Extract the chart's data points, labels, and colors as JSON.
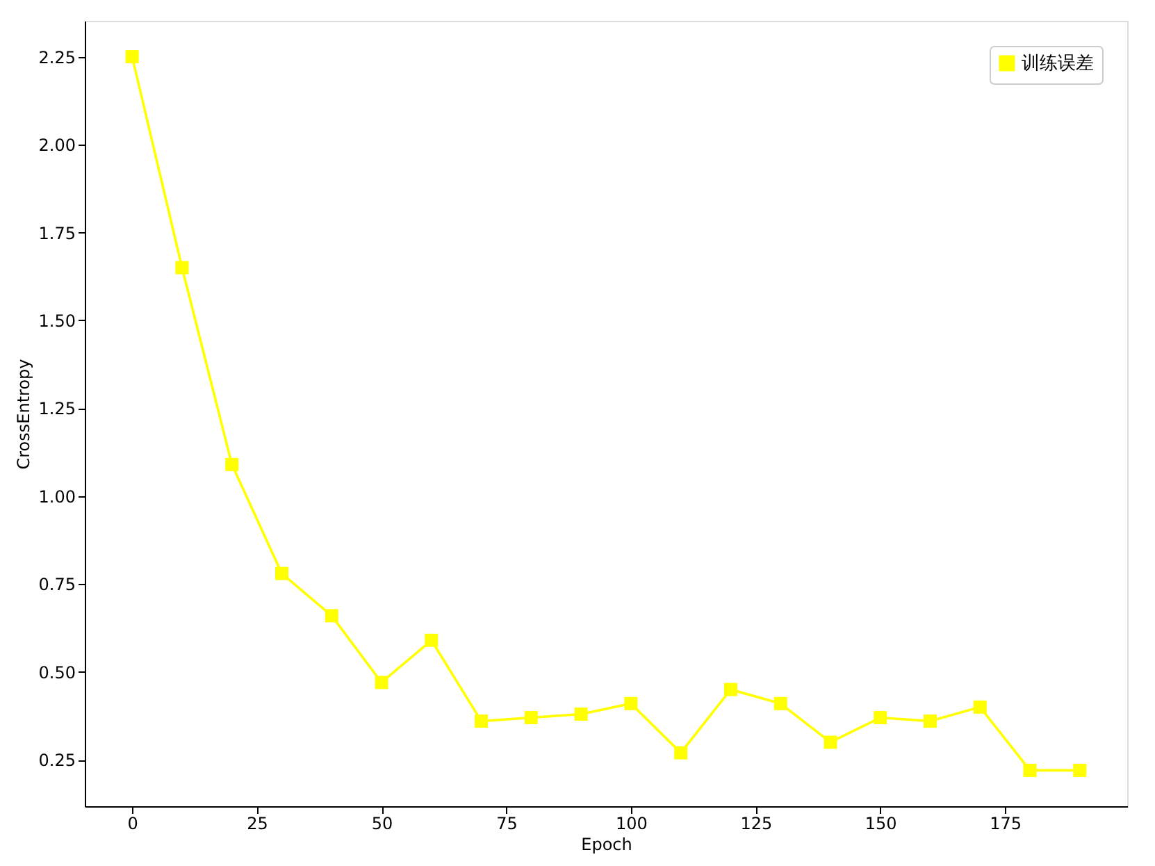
{
  "chart_data": {
    "type": "line",
    "xlabel": "Epoch",
    "ylabel": "CrossEntropy",
    "x": [
      0,
      10,
      20,
      30,
      40,
      50,
      60,
      70,
      80,
      90,
      100,
      110,
      120,
      130,
      140,
      150,
      160,
      170,
      180,
      190
    ],
    "series": [
      {
        "name": "训练误差",
        "color": "#ffff00",
        "values": [
          2.25,
          1.65,
          1.09,
          0.78,
          0.66,
          0.47,
          0.59,
          0.36,
          0.37,
          0.38,
          0.41,
          0.27,
          0.45,
          0.41,
          0.3,
          0.37,
          0.36,
          0.4,
          0.22,
          0.22
        ]
      }
    ],
    "marker": "square",
    "line_style": "solid",
    "legend": "top right",
    "grid": false,
    "xlim": [
      -9.5,
      199.5
    ],
    "xticks": [
      0,
      25,
      50,
      75,
      100,
      125,
      150,
      175
    ],
    "ylim": [
      0.118,
      2.352
    ],
    "yticks": [
      {
        "value": 0.25,
        "label": "0.25"
      },
      {
        "value": 0.5,
        "label": "0.50"
      },
      {
        "value": 0.75,
        "label": "0.75"
      },
      {
        "value": 1,
        "label": "1.00"
      },
      {
        "value": 1.25,
        "label": "1.25"
      },
      {
        "value": 1.5,
        "label": "1.50"
      },
      {
        "value": 1.75,
        "label": "1.75"
      },
      {
        "value": 2,
        "label": "2.00"
      },
      {
        "value": 2.25,
        "label": "2.25"
      }
    ]
  }
}
